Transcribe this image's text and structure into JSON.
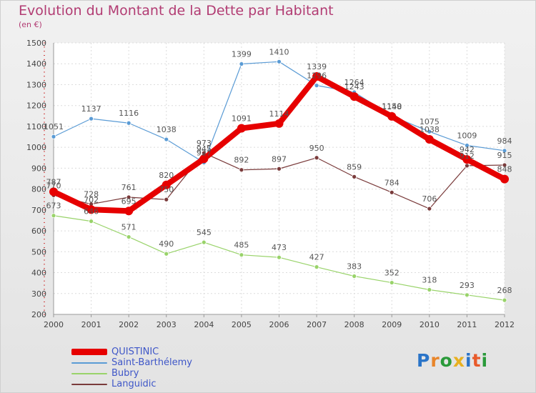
{
  "title": "Evolution du Montant de la Dette par Habitant",
  "subtitle": "(en €)",
  "logo": {
    "text": "Proxiti",
    "colors": [
      "#2a74c8",
      "#e8852a",
      "#2a9a3a",
      "#e8b020",
      "#2a74c8",
      "#e85a2a",
      "#2a9a3a"
    ]
  },
  "chart_data": {
    "type": "line",
    "x": [
      "2000",
      "2001",
      "2002",
      "2003",
      "2004",
      "2005",
      "2006",
      "2007",
      "2008",
      "2009",
      "2010",
      "2011",
      "2012"
    ],
    "ylim": [
      200,
      1500
    ],
    "yticks": [
      "200",
      "300",
      "400",
      "500",
      "600",
      "700",
      "800",
      "900",
      "1000",
      "1100",
      "1200",
      "1300",
      "1400",
      "1500"
    ],
    "grid": true,
    "legend_position": "bottom-left",
    "series": [
      {
        "name": "QUISTINIC",
        "color": "#e60000",
        "values": [
          787,
          702,
          695,
          820,
          945,
          1091,
          1114,
          1339,
          1243,
          1148,
          1038,
          942,
          848
        ],
        "labels": [
          "787",
          "702",
          "695",
          "820",
          "945",
          "1091",
          "1114",
          "1339",
          "1243",
          "1148",
          "1038",
          "942",
          "848"
        ]
      },
      {
        "name": "Saint-Barthélemy",
        "color": "#5a9bd5",
        "values": [
          1051,
          1137,
          1116,
          1038,
          927,
          1399,
          1410,
          1296,
          1264,
          1150,
          1075,
          1009,
          984
        ],
        "labels": [
          "1051",
          "1137",
          "1116",
          "1038",
          "927",
          "1399",
          "1410",
          "1296",
          "1264",
          "1150",
          "1075",
          "1009",
          "984"
        ]
      },
      {
        "name": "Bubry",
        "color": "#99d36a",
        "values": [
          673,
          646,
          571,
          490,
          545,
          485,
          473,
          427,
          383,
          352,
          318,
          293,
          268
        ],
        "labels": [
          "673",
          "646",
          "571",
          "490",
          "545",
          "485",
          "473",
          "427",
          "383",
          "352",
          "318",
          "293",
          "268"
        ]
      },
      {
        "name": "Languidic",
        "color": "#7a3b3b",
        "values": [
          770,
          728,
          761,
          750,
          973,
          892,
          897,
          950,
          859,
          784,
          706,
          912,
          915
        ],
        "labels": [
          "770",
          "728",
          "761",
          "750",
          "973",
          "892",
          "897",
          "950",
          "859",
          "784",
          "706",
          "912",
          "915"
        ]
      }
    ]
  }
}
